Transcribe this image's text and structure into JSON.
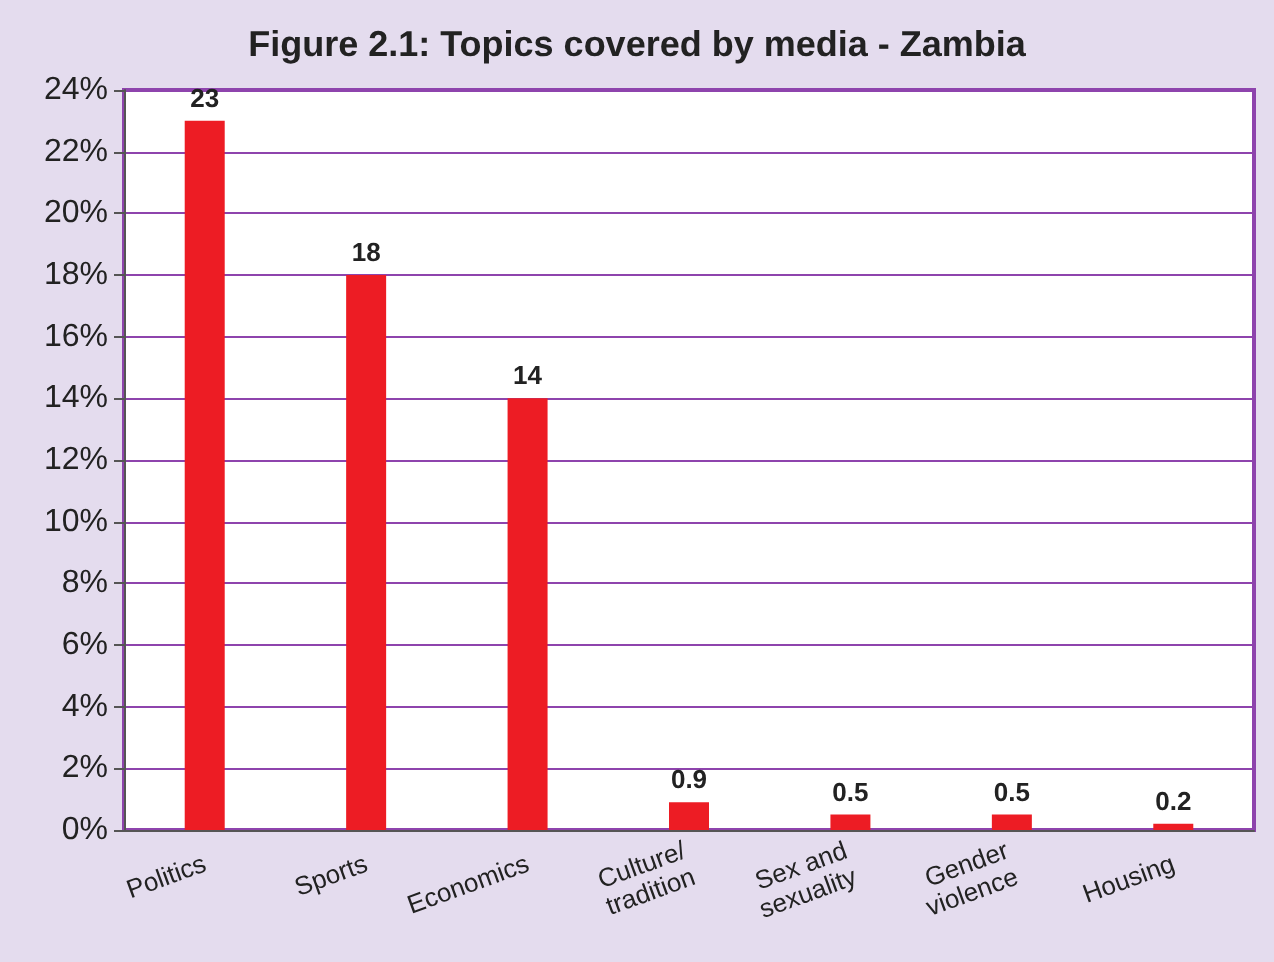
{
  "chart_data": {
    "type": "bar",
    "title": "Figure 2.1: Topics covered by media - Zambia",
    "categories": [
      "Politics",
      "Sports",
      "Economics",
      "Culture/\ntradition",
      "Sex and\nsexuality",
      "Gender\nviolence",
      "Housing"
    ],
    "values": [
      23,
      18,
      14,
      0.9,
      0.5,
      0.5,
      0.2
    ],
    "color": "#ed1c24",
    "ylim": [
      0,
      24
    ],
    "yticks": [
      {
        "value": 0,
        "label": "0%"
      },
      {
        "value": 2,
        "label": "2%"
      },
      {
        "value": 4,
        "label": "4%"
      },
      {
        "value": 6,
        "label": "6%"
      },
      {
        "value": 8,
        "label": "8%"
      },
      {
        "value": 10,
        "label": "10%"
      },
      {
        "value": 12,
        "label": "12%"
      },
      {
        "value": 14,
        "label": "14%"
      },
      {
        "value": 16,
        "label": "16%"
      },
      {
        "value": 18,
        "label": "18%"
      },
      {
        "value": 20,
        "label": "20%"
      },
      {
        "value": 22,
        "label": "22%"
      },
      {
        "value": 24,
        "label": "24%"
      }
    ],
    "grid": "y",
    "data_labels": true
  }
}
